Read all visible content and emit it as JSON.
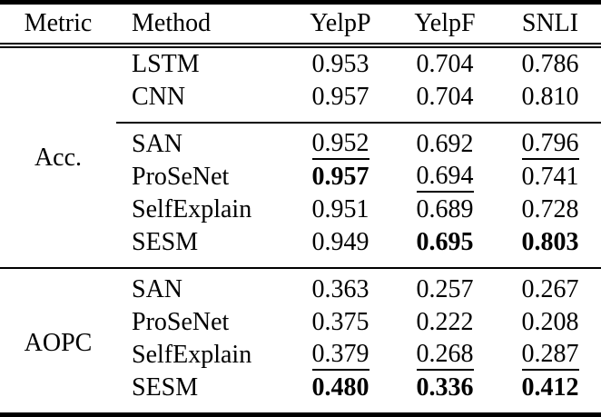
{
  "colors": {
    "text": "#000000",
    "background": "#ffffff",
    "rule": "#000000"
  },
  "table": {
    "columns": [
      "Metric",
      "Method",
      "YelpP",
      "YelpF",
      "SNLI"
    ],
    "sections": [
      {
        "metric": "Acc.",
        "groups": [
          {
            "rows": [
              {
                "method": "LSTM",
                "values": [
                  {
                    "text": "0.953",
                    "style": "plain"
                  },
                  {
                    "text": "0.704",
                    "style": "plain"
                  },
                  {
                    "text": "0.786",
                    "style": "plain"
                  }
                ]
              },
              {
                "method": "CNN",
                "values": [
                  {
                    "text": "0.957",
                    "style": "plain"
                  },
                  {
                    "text": "0.704",
                    "style": "plain"
                  },
                  {
                    "text": "0.810",
                    "style": "plain"
                  }
                ]
              }
            ]
          },
          {
            "rows": [
              {
                "method": "SAN",
                "values": [
                  {
                    "text": "0.952",
                    "style": "underline"
                  },
                  {
                    "text": "0.692",
                    "style": "plain"
                  },
                  {
                    "text": "0.796",
                    "style": "underline"
                  }
                ]
              },
              {
                "method": "ProSeNet",
                "values": [
                  {
                    "text": "0.957",
                    "style": "bold"
                  },
                  {
                    "text": "0.694",
                    "style": "underline"
                  },
                  {
                    "text": "0.741",
                    "style": "plain"
                  }
                ]
              },
              {
                "method": "SelfExplain",
                "values": [
                  {
                    "text": "0.951",
                    "style": "plain"
                  },
                  {
                    "text": "0.689",
                    "style": "plain"
                  },
                  {
                    "text": "0.728",
                    "style": "plain"
                  }
                ]
              },
              {
                "method": "SESM",
                "values": [
                  {
                    "text": "0.949",
                    "style": "plain"
                  },
                  {
                    "text": "0.695",
                    "style": "bold"
                  },
                  {
                    "text": "0.803",
                    "style": "bold"
                  }
                ]
              }
            ]
          }
        ]
      },
      {
        "metric": "AOPC",
        "groups": [
          {
            "rows": [
              {
                "method": "SAN",
                "values": [
                  {
                    "text": "0.363",
                    "style": "plain"
                  },
                  {
                    "text": "0.257",
                    "style": "plain"
                  },
                  {
                    "text": "0.267",
                    "style": "plain"
                  }
                ]
              },
              {
                "method": "ProSeNet",
                "values": [
                  {
                    "text": "0.375",
                    "style": "plain"
                  },
                  {
                    "text": "0.222",
                    "style": "plain"
                  },
                  {
                    "text": "0.208",
                    "style": "plain"
                  }
                ]
              },
              {
                "method": "SelfExplain",
                "values": [
                  {
                    "text": "0.379",
                    "style": "underline"
                  },
                  {
                    "text": "0.268",
                    "style": "underline"
                  },
                  {
                    "text": "0.287",
                    "style": "underline"
                  }
                ]
              },
              {
                "method": "SESM",
                "values": [
                  {
                    "text": "0.480",
                    "style": "bold"
                  },
                  {
                    "text": "0.336",
                    "style": "bold"
                  },
                  {
                    "text": "0.412",
                    "style": "bold"
                  }
                ]
              }
            ]
          }
        ]
      }
    ]
  },
  "chart_data": {
    "type": "table",
    "columns": [
      "Metric",
      "Method",
      "YelpP",
      "YelpF",
      "SNLI"
    ],
    "rows": [
      [
        "Acc.",
        "LSTM",
        "0.953",
        "0.704",
        "0.786"
      ],
      [
        "Acc.",
        "CNN",
        "0.957",
        "0.704",
        "0.810"
      ],
      [
        "Acc.",
        "SAN",
        "0.952",
        "0.692",
        "0.796"
      ],
      [
        "Acc.",
        "ProSeNet",
        "0.957",
        "0.694",
        "0.741"
      ],
      [
        "Acc.",
        "SelfExplain",
        "0.951",
        "0.689",
        "0.728"
      ],
      [
        "Acc.",
        "SESM",
        "0.949",
        "0.695",
        "0.803"
      ],
      [
        "AOPC",
        "SAN",
        "0.363",
        "0.257",
        "0.267"
      ],
      [
        "AOPC",
        "ProSeNet",
        "0.375",
        "0.222",
        "0.208"
      ],
      [
        "AOPC",
        "SelfExplain",
        "0.379",
        "0.268",
        "0.287"
      ],
      [
        "AOPC",
        "SESM",
        "0.480",
        "0.336",
        "0.412"
      ]
    ]
  }
}
